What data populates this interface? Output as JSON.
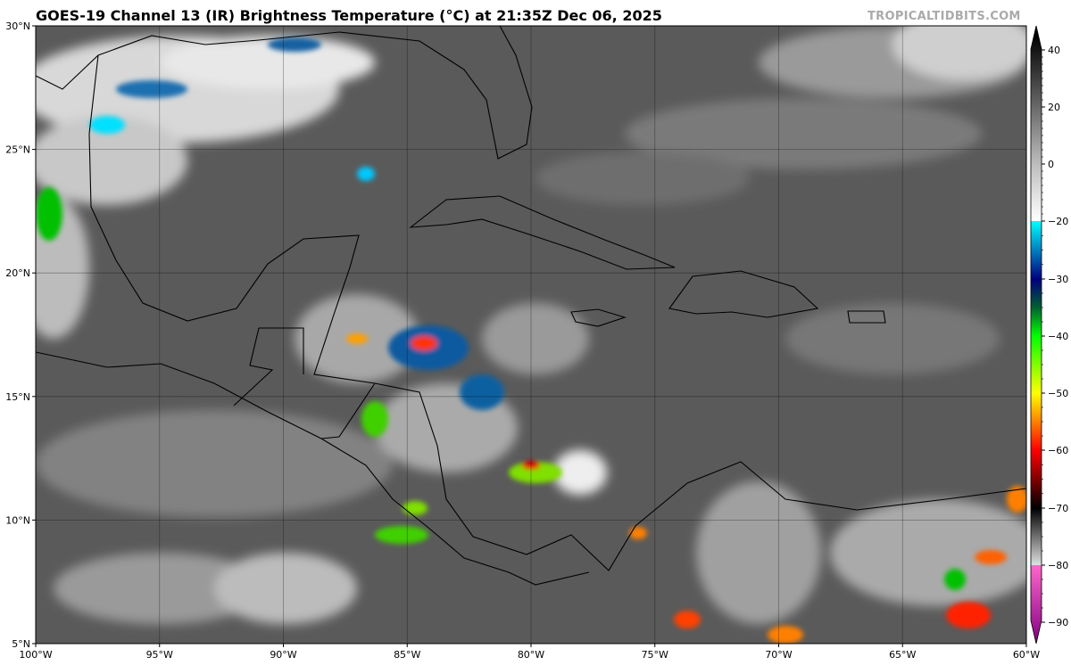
{
  "title": "GOES-19 Channel 13 (IR) Brightness Temperature (°C) at 21:35Z Dec 06, 2025",
  "watermark": "TROPICALTIDBITS.COM",
  "map": {
    "lon_range": [
      -100,
      -60
    ],
    "lat_range": [
      5,
      30
    ],
    "lat_labels": [
      "5°N",
      "10°N",
      "15°N",
      "20°N",
      "25°N",
      "30°N"
    ],
    "lon_labels": [
      "100°W",
      "95°W",
      "90°W",
      "85°W",
      "80°W",
      "75°W",
      "70°W",
      "65°W",
      "60°W"
    ],
    "background_color": "#5a5a5a"
  },
  "colorbar": {
    "ticks": [
      "40",
      "20",
      "0",
      "−20",
      "−30",
      "−40",
      "−50",
      "−60",
      "−70",
      "−80",
      "−90"
    ],
    "tick_values": [
      40,
      20,
      0,
      -20,
      -30,
      -40,
      -50,
      -60,
      -70,
      -80,
      -90
    ],
    "range": [
      -95,
      45
    ],
    "stops": [
      {
        "value": 45,
        "color": "#000000"
      },
      {
        "value": 0,
        "color": "#bdbdbd"
      },
      {
        "value": -20,
        "color": "#ffffff"
      },
      {
        "value": -20.01,
        "color": "#00ffff"
      },
      {
        "value": -30,
        "color": "#000080"
      },
      {
        "value": -35,
        "color": "#006030"
      },
      {
        "value": -40,
        "color": "#00ff00"
      },
      {
        "value": -50,
        "color": "#ffff00"
      },
      {
        "value": -55,
        "color": "#ff8000"
      },
      {
        "value": -60,
        "color": "#ff0000"
      },
      {
        "value": -70,
        "color": "#000000"
      },
      {
        "value": -80,
        "color": "#e0e0e0"
      },
      {
        "value": -80.01,
        "color": "#ff66cc"
      },
      {
        "value": -95,
        "color": "#800080"
      }
    ]
  }
}
